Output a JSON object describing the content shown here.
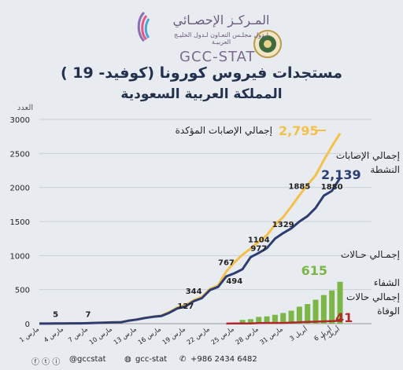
{
  "header": {
    "org_ar": "المـركـز الإحصـائي",
    "org_sub": "لـدول مجلـس التعـاون لـدول الخليـج العربيـة",
    "brand": "GCC-STAT",
    "title": "مستجدات فيروس كورونا (كوفيد- 19 )",
    "subtitle": "المملكة العربية السعودية"
  },
  "chart_data": {
    "type": "line",
    "ylabel": "العدد",
    "ylim": [
      0,
      3000
    ],
    "yticks": [
      0,
      500,
      1000,
      1500,
      2000,
      2500,
      3000
    ],
    "xticks": [
      "1 مارس",
      "4 مارس",
      "7 مارس",
      "10 مارس",
      "13 مارس",
      "16 مارس",
      "19 مارس",
      "22 مارس",
      "25 مارس",
      "28 مارس",
      "31 مارس",
      "3 أبريل",
      "6 أبريل",
      "7 أبريل"
    ],
    "tick_days": [
      1,
      4,
      7,
      10,
      13,
      16,
      19,
      22,
      25,
      28,
      31,
      34,
      37,
      38
    ],
    "colors": {
      "confirmed": "#f5c04a",
      "active": "#2d3d73",
      "recovered": "#7bb646",
      "deaths": "#b02a2a"
    },
    "series": [
      {
        "key": "confirmed",
        "name": "إجمالي الإصابات المؤكدة",
        "total": "2,795",
        "x": [
          1,
          2,
          3,
          4,
          5,
          6,
          7,
          8,
          9,
          10,
          11,
          12,
          13,
          14,
          15,
          16,
          17,
          18,
          19,
          20,
          21,
          22,
          23,
          24,
          25,
          26,
          27,
          28,
          29,
          30,
          31,
          32,
          33,
          34,
          35,
          36,
          37,
          38
        ],
        "y": [
          1,
          1,
          3,
          4,
          5,
          5,
          7,
          11,
          15,
          20,
          21,
          45,
          62,
          86,
          103,
          118,
          171,
          238,
          274,
          344,
          392,
          511,
          562,
          767,
          900,
          1012,
          1104,
          1203,
          1299,
          1453,
          1563,
          1720,
          1885,
          2039,
          2179,
          2402,
          2605,
          2795
        ]
      },
      {
        "key": "active",
        "name": "إجمالي الإصابات النشطة",
        "total": "2,139",
        "x": [
          1,
          2,
          3,
          4,
          5,
          6,
          7,
          8,
          9,
          10,
          11,
          12,
          13,
          14,
          15,
          16,
          17,
          18,
          19,
          20,
          21,
          22,
          23,
          24,
          25,
          26,
          27,
          28,
          29,
          30,
          31,
          32,
          33,
          34,
          35,
          36,
          37,
          38
        ],
        "y": [
          1,
          1,
          3,
          4,
          5,
          5,
          7,
          11,
          15,
          19,
          20,
          44,
          60,
          83,
          100,
          112,
          160,
          225,
          254,
          330,
          375,
          494,
          540,
          694,
          740,
          800,
          977,
          1040,
          1110,
          1249,
          1329,
          1400,
          1500,
          1580,
          1700,
          1880,
          1950,
          2139
        ]
      },
      {
        "key": "recovered",
        "name": "إجمـالي حـالات الشفاء",
        "total": "615",
        "x": [
          26,
          27,
          28,
          29,
          30,
          31,
          32,
          33,
          34,
          35,
          36,
          37,
          38
        ],
        "y": [
          55,
          66,
          99,
          107,
          130,
          156,
          190,
          249,
          288,
          351,
          420,
          488,
          615
        ]
      },
      {
        "key": "deaths",
        "name": "إجمالي حالات الوفاة",
        "total": "41",
        "x": [
          24,
          25,
          26,
          27,
          28,
          29,
          30,
          31,
          32,
          33,
          34,
          35,
          36,
          37,
          38
        ],
        "y": [
          1,
          3,
          4,
          4,
          8,
          10,
          10,
          10,
          16,
          21,
          25,
          29,
          34,
          38,
          41
        ]
      }
    ],
    "annotations": [
      {
        "day": 3,
        "y": 5,
        "text": "5"
      },
      {
        "day": 7,
        "y": 7,
        "text": "7"
      },
      {
        "day": 19,
        "y": 127,
        "text": "127"
      },
      {
        "day": 20,
        "y": 344,
        "text": "344"
      },
      {
        "day": 24,
        "y": 767,
        "text": "767"
      },
      {
        "day": 25,
        "y": 494,
        "text": "494"
      },
      {
        "day": 28,
        "y": 977,
        "text": "977"
      },
      {
        "day": 28,
        "y": 1104,
        "text": "1104"
      },
      {
        "day": 31,
        "y": 1329,
        "text": "1329"
      },
      {
        "day": 33,
        "y": 1885,
        "text": "1885"
      },
      {
        "day": 37,
        "y": 1880,
        "text": "1880"
      }
    ]
  },
  "footer": {
    "social": "@gccstat",
    "snap": "gcc-stat",
    "phone": "+986 2434 6482"
  }
}
